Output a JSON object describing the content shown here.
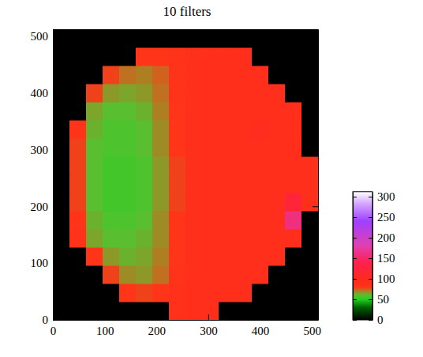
{
  "chart_data": {
    "type": "heatmap",
    "title": "10 filters",
    "x": [
      0,
      32,
      64,
      96,
      128,
      160,
      192,
      224,
      256,
      288,
      320,
      352,
      384,
      416,
      448,
      480,
      512
    ],
    "y": [
      0,
      32,
      64,
      96,
      128,
      160,
      192,
      224,
      256,
      288,
      320,
      352,
      384,
      416,
      448,
      480,
      512
    ],
    "cells": [
      [
        0,
        0,
        0,
        0,
        0,
        0,
        0,
        85,
        90,
        90,
        0,
        0,
        0,
        0,
        0,
        0
      ],
      [
        0,
        0,
        0,
        0,
        80,
        78,
        80,
        86,
        90,
        90,
        90,
        90,
        0,
        0,
        0,
        0
      ],
      [
        0,
        0,
        0,
        78,
        68,
        66,
        72,
        82,
        88,
        90,
        90,
        90,
        90,
        0,
        0,
        0
      ],
      [
        0,
        0,
        80,
        66,
        62,
        64,
        70,
        80,
        88,
        90,
        90,
        90,
        90,
        90,
        0,
        0
      ],
      [
        0,
        82,
        64,
        60,
        60,
        62,
        68,
        80,
        88,
        90,
        90,
        90,
        90,
        90,
        92,
        0
      ],
      [
        0,
        80,
        62,
        58,
        58,
        60,
        68,
        80,
        88,
        90,
        90,
        90,
        90,
        92,
        160,
        0
      ],
      [
        0,
        78,
        60,
        56,
        56,
        58,
        66,
        78,
        88,
        90,
        90,
        90,
        90,
        92,
        120,
        88
      ],
      [
        0,
        78,
        60,
        56,
        56,
        58,
        66,
        78,
        88,
        90,
        90,
        90,
        90,
        90,
        90,
        88
      ],
      [
        0,
        78,
        60,
        56,
        56,
        58,
        66,
        78,
        88,
        90,
        90,
        90,
        90,
        90,
        90,
        88
      ],
      [
        0,
        78,
        60,
        58,
        58,
        60,
        68,
        80,
        88,
        90,
        90,
        90,
        90,
        90,
        90,
        0
      ],
      [
        0,
        80,
        62,
        58,
        58,
        60,
        68,
        80,
        88,
        90,
        90,
        90,
        94,
        90,
        90,
        0
      ],
      [
        0,
        0,
        64,
        60,
        60,
        62,
        70,
        80,
        88,
        90,
        90,
        90,
        90,
        90,
        90,
        0
      ],
      [
        0,
        0,
        78,
        66,
        64,
        66,
        72,
        82,
        88,
        90,
        90,
        90,
        90,
        90,
        0,
        0
      ],
      [
        0,
        0,
        0,
        78,
        72,
        70,
        74,
        82,
        88,
        90,
        90,
        90,
        90,
        0,
        0,
        0
      ],
      [
        0,
        0,
        0,
        0,
        0,
        80,
        80,
        84,
        88,
        90,
        90,
        90,
        0,
        0,
        0,
        0
      ],
      [
        0,
        0,
        0,
        0,
        0,
        0,
        0,
        0,
        0,
        0,
        0,
        0,
        0,
        0,
        0,
        0
      ]
    ],
    "xlim": [
      0,
      512
    ],
    "ylim": [
      0,
      512
    ],
    "xticks": [
      0,
      100,
      200,
      300,
      400,
      500
    ],
    "yticks": [
      0,
      100,
      200,
      300,
      400,
      500
    ],
    "zlim": [
      0,
      312
    ],
    "zticks": [
      0,
      50,
      100,
      150,
      200,
      250,
      300
    ]
  }
}
